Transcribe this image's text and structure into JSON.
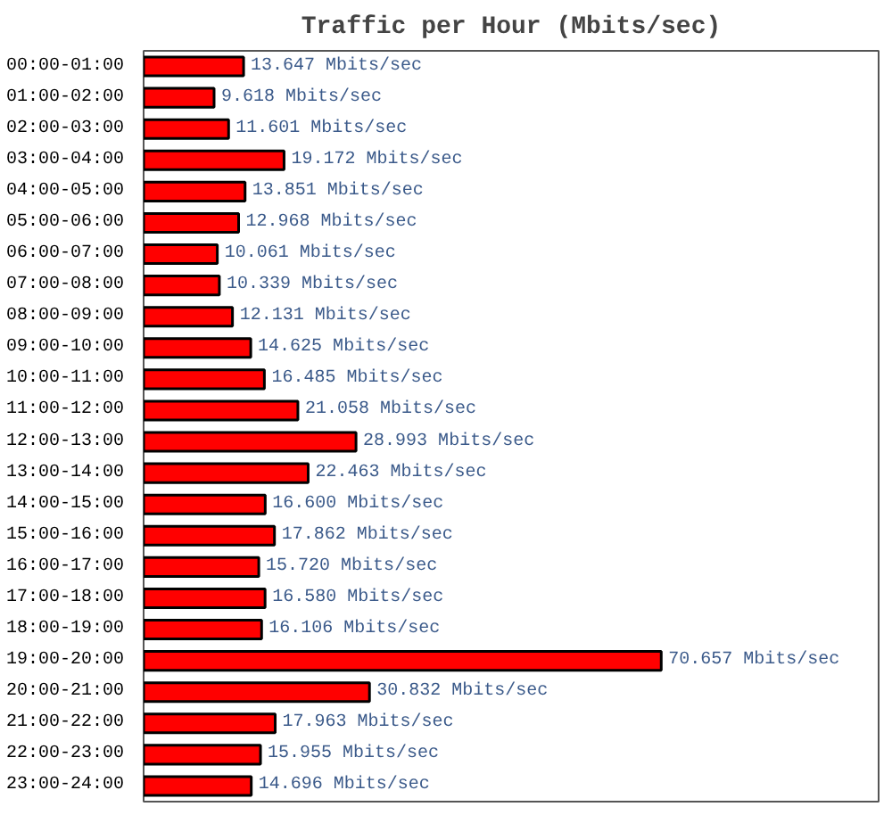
{
  "chart_data": {
    "type": "bar",
    "orientation": "horizontal",
    "title": "Traffic per Hour (Mbits/sec)",
    "categories": [
      "00:00-01:00",
      "01:00-02:00",
      "02:00-03:00",
      "03:00-04:00",
      "04:00-05:00",
      "05:00-06:00",
      "06:00-07:00",
      "07:00-08:00",
      "08:00-09:00",
      "09:00-10:00",
      "10:00-11:00",
      "11:00-12:00",
      "12:00-13:00",
      "13:00-14:00",
      "14:00-15:00",
      "15:00-16:00",
      "16:00-17:00",
      "17:00-18:00",
      "18:00-19:00",
      "19:00-20:00",
      "20:00-21:00",
      "21:00-22:00",
      "22:00-23:00",
      "23:00-24:00"
    ],
    "values": [
      13.647,
      9.618,
      11.601,
      19.172,
      13.851,
      12.968,
      10.061,
      10.339,
      12.131,
      14.625,
      16.485,
      21.058,
      28.993,
      22.463,
      16.6,
      17.862,
      15.72,
      16.58,
      16.106,
      70.657,
      30.832,
      17.963,
      15.955,
      14.696
    ],
    "value_labels": [
      "13.647 Mbits/sec",
      "9.618 Mbits/sec",
      "11.601 Mbits/sec",
      "19.172 Mbits/sec",
      "13.851 Mbits/sec",
      "12.968 Mbits/sec",
      "10.061 Mbits/sec",
      "10.339 Mbits/sec",
      "12.131 Mbits/sec",
      "14.625 Mbits/sec",
      "16.485 Mbits/sec",
      "21.058 Mbits/sec",
      "28.993 Mbits/sec",
      "22.463 Mbits/sec",
      "16.600 Mbits/sec",
      "17.862 Mbits/sec",
      "15.720 Mbits/sec",
      "16.580 Mbits/sec",
      "16.106 Mbits/sec",
      "70.657 Mbits/sec",
      "30.832 Mbits/sec",
      "17.963 Mbits/sec",
      "15.955 Mbits/sec",
      "14.696 Mbits/sec"
    ],
    "color": "#ff0000",
    "grid": false
  }
}
